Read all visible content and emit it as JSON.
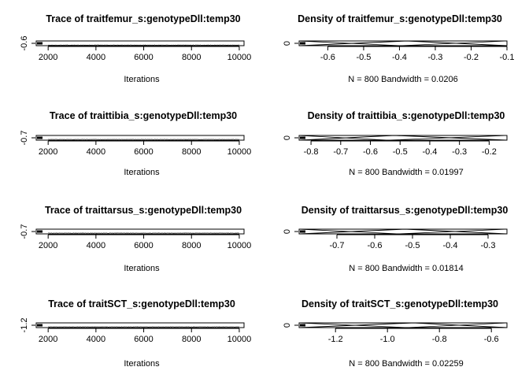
{
  "chart_data": [
    {
      "type": "line",
      "title": "Trace of traitfemur_s:genotypeDll:temp30",
      "xlabel": "Iterations",
      "ylabel": "",
      "x_ticks": [
        "2000",
        "4000",
        "6000",
        "8000",
        "10000"
      ],
      "y_ticks": [
        "-0.6"
      ],
      "xlim": [
        1500,
        10200
      ],
      "ylim": [
        -0.68,
        -0.1
      ],
      "x_range": [
        2000,
        10000
      ],
      "y_center": -0.6,
      "y_spread": 0.03,
      "series": [
        {
          "values": []
        }
      ],
      "n_points": 800
    },
    {
      "type": "line",
      "title": "Density of traitfemur_s:genotypeDll:temp30",
      "xlabel": "N = 800   Bandwidth = 0.0206",
      "ylabel": "",
      "x_ticks": [
        "-0.6",
        "-0.5",
        "-0.4",
        "-0.3",
        "-0.2",
        "-0.1"
      ],
      "y_ticks": [
        "0"
      ],
      "xlim": [
        -0.68,
        -0.1
      ],
      "ylim": [
        0,
        1
      ],
      "density_peak_x": -0.38,
      "density_lo": -0.68,
      "density_hi": -0.1
    },
    {
      "type": "line",
      "title": "Trace of traittibia_s:genotypeDll:temp30",
      "xlabel": "Iterations",
      "ylabel": "",
      "x_ticks": [
        "2000",
        "4000",
        "6000",
        "8000",
        "10000"
      ],
      "y_ticks": [
        "-0.7"
      ],
      "xlim": [
        1500,
        10200
      ],
      "ylim": [
        -0.82,
        -0.14
      ],
      "x_range": [
        2000,
        10000
      ],
      "y_center": -0.7,
      "y_spread": 0.03,
      "series": [
        {
          "values": []
        }
      ],
      "n_points": 800
    },
    {
      "type": "line",
      "title": "Density of traittibia_s:genotypeDll:temp30",
      "xlabel": "N = 800   Bandwidth = 0.01997",
      "ylabel": "",
      "x_ticks": [
        "-0.8",
        "-0.7",
        "-0.6",
        "-0.5",
        "-0.4",
        "-0.3",
        "-0.2"
      ],
      "y_ticks": [
        "0"
      ],
      "xlim": [
        -0.84,
        -0.14
      ],
      "ylim": [
        0,
        1
      ],
      "density_peak_x": -0.52,
      "density_lo": -0.84,
      "density_hi": -0.14
    },
    {
      "type": "line",
      "title": "Trace of traittarsus_s:genotypeDll:temp30",
      "xlabel": "Iterations",
      "ylabel": "",
      "x_ticks": [
        "2000",
        "4000",
        "6000",
        "8000",
        "10000"
      ],
      "y_ticks": [
        "-0.7"
      ],
      "xlim": [
        1500,
        10200
      ],
      "ylim": [
        -0.8,
        -0.25
      ],
      "x_range": [
        2000,
        10000
      ],
      "y_center": -0.7,
      "y_spread": 0.03,
      "series": [
        {
          "values": []
        }
      ],
      "n_points": 800
    },
    {
      "type": "line",
      "title": "Density of traittarsus_s:genotypeDll:temp30",
      "xlabel": "N = 800   Bandwidth = 0.01814",
      "ylabel": "",
      "x_ticks": [
        "-0.7",
        "-0.6",
        "-0.5",
        "-0.4",
        "-0.3"
      ],
      "y_ticks": [
        "0"
      ],
      "xlim": [
        -0.8,
        -0.25
      ],
      "ylim": [
        0,
        1
      ],
      "density_peak_x": -0.52,
      "density_lo": -0.8,
      "density_hi": -0.25
    },
    {
      "type": "line",
      "title": "Trace of traitSCT_s:genotypeDll:temp30",
      "xlabel": "Iterations",
      "ylabel": "",
      "x_ticks": [
        "2000",
        "4000",
        "6000",
        "8000",
        "10000"
      ],
      "y_ticks": [
        "-1.2"
      ],
      "xlim": [
        1500,
        10200
      ],
      "ylim": [
        -1.34,
        -0.54
      ],
      "x_range": [
        2000,
        10000
      ],
      "y_center": -1.2,
      "y_spread": 0.04,
      "series": [
        {
          "values": []
        }
      ],
      "n_points": 800
    },
    {
      "type": "line",
      "title": "Density of traitSCT_s:genotypeDll:temp30",
      "xlabel": "N = 800   Bandwidth = 0.02259",
      "ylabel": "",
      "x_ticks": [
        "-1.2",
        "-1.0",
        "-0.8",
        "-0.6"
      ],
      "y_ticks": [
        "0"
      ],
      "xlim": [
        -1.34,
        -0.54
      ],
      "ylim": [
        0,
        1
      ],
      "density_peak_x": -0.9,
      "density_lo": -1.34,
      "density_hi": -0.54
    }
  ]
}
